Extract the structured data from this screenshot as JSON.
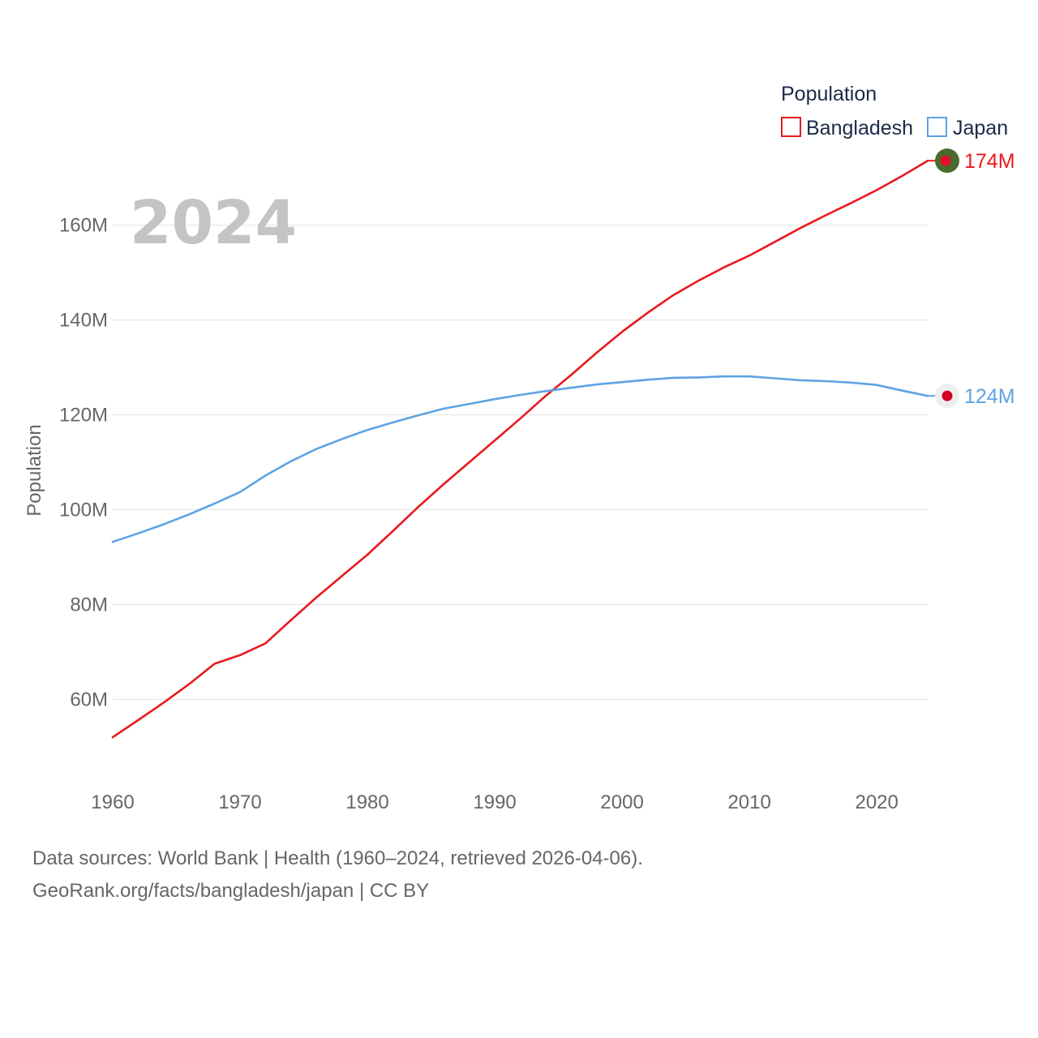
{
  "chart_data": {
    "type": "line",
    "title": "Population",
    "year_label": "2024",
    "ylabel": "Population",
    "xlabel": "",
    "xlim": [
      1960,
      2024
    ],
    "ylim": [
      45000000,
      175000000
    ],
    "x_ticks": [
      1960,
      1970,
      1980,
      1990,
      2000,
      2010,
      2020
    ],
    "x_tick_labels": [
      "1960",
      "1970",
      "1980",
      "1990",
      "2000",
      "2010",
      "2020"
    ],
    "y_ticks": [
      60000000,
      80000000,
      100000000,
      120000000,
      140000000,
      160000000
    ],
    "y_tick_labels": [
      "60M",
      "80M",
      "100M",
      "120M",
      "140M",
      "160M"
    ],
    "legend": {
      "title": "Population",
      "position": "top-right"
    },
    "x": [
      1960,
      1962,
      1964,
      1966,
      1968,
      1970,
      1972,
      1974,
      1976,
      1978,
      1980,
      1982,
      1984,
      1986,
      1988,
      1990,
      1992,
      1994,
      1996,
      1998,
      2000,
      2002,
      2004,
      2006,
      2008,
      2010,
      2012,
      2014,
      2016,
      2018,
      2020,
      2022,
      2024
    ],
    "series": [
      {
        "name": "Bangladesh",
        "color": "#e8191e",
        "end_label": "174M",
        "values": [
          52000000,
          55600000,
          59300000,
          63200000,
          67500000,
          69300000,
          71800000,
          76700000,
          81500000,
          86000000,
          90500000,
          95500000,
          100600000,
          105400000,
          110000000,
          114600000,
          119200000,
          124000000,
          128400000,
          133100000,
          137500000,
          141500000,
          145200000,
          148300000,
          151100000,
          153600000,
          156500000,
          159400000,
          162100000,
          164700000,
          167400000,
          170400000,
          173600000
        ]
      },
      {
        "name": "Japan",
        "color": "#5ea3e3",
        "end_label": "124M",
        "values": [
          93200000,
          95000000,
          96900000,
          99000000,
          101300000,
          103700000,
          107200000,
          110200000,
          112800000,
          114900000,
          116800000,
          118400000,
          119900000,
          121300000,
          122300000,
          123300000,
          124200000,
          125000000,
          125700000,
          126400000,
          126900000,
          127400000,
          127800000,
          127900000,
          128100000,
          128100000,
          127700000,
          127300000,
          127100000,
          126800000,
          126300000,
          125100000,
          124000000
        ]
      }
    ],
    "markers": [
      {
        "series": "Bangladesh",
        "icon": "bangladesh-flag-icon",
        "bg": "#4a6b2e",
        "dot": "#e0102a"
      },
      {
        "series": "Japan",
        "icon": "japan-flag-icon",
        "bg": "#eeeeee",
        "dot": "#d10021"
      }
    ]
  },
  "footer": {
    "line1": "Data sources: World Bank | Health (1960–2024, retrieved 2026-04-06).",
    "line2": "GeoRank.org/facts/bangladesh/japan | CC BY"
  }
}
